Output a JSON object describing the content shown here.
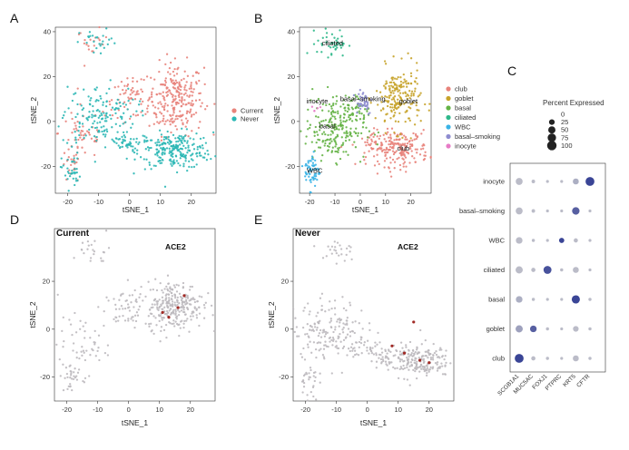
{
  "figure": {
    "panel_letters": [
      "A",
      "B",
      "C",
      "D",
      "E"
    ]
  },
  "chart_data": [
    {
      "panel": "A",
      "type": "scatter",
      "xlabel": "tSNE_1",
      "ylabel": "tSNE_2",
      "xticks": [
        -20,
        -10,
        0,
        10,
        20
      ],
      "yticks": [
        -20,
        0,
        20,
        40
      ],
      "xlim": [
        -24,
        28
      ],
      "ylim": [
        -32,
        42
      ],
      "legend": {
        "placement": "right",
        "entries": [
          {
            "name": "Current",
            "color": "#E8837B"
          },
          {
            "name": "Never",
            "color": "#2BB7B5"
          }
        ]
      },
      "series": [
        {
          "name": "Current",
          "color": "#E8837B",
          "clusters": [
            {
              "cx": 15,
              "cy": 10,
              "sx": 4.5,
              "sy": 8,
              "n": 260
            },
            {
              "cx": -12,
              "cy": 35,
              "sx": 2.5,
              "sy": 3,
              "n": 20
            },
            {
              "cx": 0,
              "cy": 10,
              "sx": 4,
              "sy": 4,
              "n": 60
            },
            {
              "cx": -15,
              "cy": -5,
              "sx": 4,
              "sy": 6,
              "n": 50
            },
            {
              "cx": -19,
              "cy": -20,
              "sx": 1.5,
              "sy": 4,
              "n": 25
            }
          ]
        },
        {
          "name": "Never",
          "color": "#2BB7B5",
          "clusters": [
            {
              "cx": 15,
              "cy": -13,
              "sx": 6,
              "sy": 4,
              "n": 240
            },
            {
              "cx": -10,
              "cy": 2,
              "sx": 6,
              "sy": 7,
              "n": 160
            },
            {
              "cx": -19,
              "cy": -22,
              "sx": 1.5,
              "sy": 4,
              "n": 35
            },
            {
              "cx": -10,
              "cy": 35,
              "sx": 3,
              "sy": 3,
              "n": 25
            },
            {
              "cx": 1,
              "cy": -10,
              "sx": 4,
              "sy": 2,
              "n": 40
            }
          ]
        }
      ]
    },
    {
      "panel": "B",
      "type": "scatter",
      "xlabel": "tSNE_1",
      "ylabel": "tSNE_2",
      "xticks": [
        -20,
        -10,
        0,
        10,
        20
      ],
      "yticks": [
        -20,
        0,
        20,
        40
      ],
      "xlim": [
        -24,
        28
      ],
      "ylim": [
        -32,
        42
      ],
      "legend": {
        "placement": "right",
        "entries": [
          {
            "name": "club",
            "color": "#E8837B"
          },
          {
            "name": "goblet",
            "color": "#C7A32A"
          },
          {
            "name": "basal",
            "color": "#64B345"
          },
          {
            "name": "ciliated",
            "color": "#2EB88A"
          },
          {
            "name": "WBC",
            "color": "#39B3E6"
          },
          {
            "name": "basal–smoking",
            "color": "#8E8CD0"
          },
          {
            "name": "inocyte",
            "color": "#E77BC6"
          }
        ]
      },
      "cluster_labels": [
        {
          "text": "ciliated",
          "x": -11,
          "y": 34
        },
        {
          "text": "inocyte",
          "x": -17,
          "y": 8
        },
        {
          "text": "basal–smoking",
          "x": 1,
          "y": 9
        },
        {
          "text": "goblet",
          "x": 19,
          "y": 8
        },
        {
          "text": "basal",
          "x": -13,
          "y": -3
        },
        {
          "text": "club",
          "x": 17,
          "y": -13
        },
        {
          "text": "WBC",
          "x": -18,
          "y": -23
        }
      ],
      "series": [
        {
          "name": "club",
          "color": "#E8837B",
          "clusters": [
            {
              "cx": 15,
              "cy": -12,
              "sx": 6,
              "sy": 4,
              "n": 200
            },
            {
              "cx": 6,
              "cy": -10,
              "sx": 3,
              "sy": 2,
              "n": 25
            }
          ]
        },
        {
          "name": "goblet",
          "color": "#C7A32A",
          "clusters": [
            {
              "cx": 15,
              "cy": 10,
              "sx": 4.5,
              "sy": 7,
              "n": 200
            }
          ]
        },
        {
          "name": "basal",
          "color": "#64B345",
          "clusters": [
            {
              "cx": -10,
              "cy": -3,
              "sx": 6,
              "sy": 7,
              "n": 230
            },
            {
              "cx": -3,
              "cy": 6,
              "sx": 3,
              "sy": 3,
              "n": 30
            }
          ]
        },
        {
          "name": "ciliated",
          "color": "#2EB88A",
          "clusters": [
            {
              "cx": -11,
              "cy": 35,
              "sx": 3,
              "sy": 3,
              "n": 45
            }
          ]
        },
        {
          "name": "WBC",
          "color": "#39B3E6",
          "clusters": [
            {
              "cx": -19,
              "cy": -22,
              "sx": 1.5,
              "sy": 4,
              "n": 60
            }
          ]
        },
        {
          "name": "basal–smoking",
          "color": "#8E8CD0",
          "clusters": [
            {
              "cx": 1,
              "cy": 9,
              "sx": 2,
              "sy": 3,
              "n": 40
            }
          ]
        },
        {
          "name": "inocyte",
          "color": "#E77BC6",
          "clusters": [
            {
              "cx": -17,
              "cy": 6,
              "sx": 1,
              "sy": 1,
              "n": 5
            }
          ]
        }
      ]
    },
    {
      "panel": "C",
      "type": "dot",
      "genes": [
        "SCGB1A1",
        "MUC5AC",
        "FOXJ1",
        "PTPRC",
        "KRT5",
        "CFTR"
      ],
      "cell_types": [
        "inocyte",
        "basal–smoking",
        "WBC",
        "ciliated",
        "basal",
        "goblet",
        "club"
      ],
      "size_legend": {
        "title": "Percent Expressed",
        "levels": [
          0,
          25,
          50,
          75,
          100
        ]
      },
      "values": [
        {
          "cell": "inocyte",
          "pct": [
            45,
            5,
            2,
            2,
            30,
            85
          ],
          "avg": [
            0.1,
            0.1,
            0.1,
            0.1,
            0.2,
            1.0
          ]
        },
        {
          "cell": "basal–smoking",
          "pct": [
            45,
            5,
            2,
            2,
            55,
            2
          ],
          "avg": [
            0.1,
            0.1,
            0.1,
            0.1,
            0.8,
            0.1
          ]
        },
        {
          "cell": "WBC",
          "pct": [
            40,
            3,
            2,
            20,
            10,
            2
          ],
          "avg": [
            0.1,
            0.1,
            0.1,
            1.0,
            0.1,
            0.1
          ]
        },
        {
          "cell": "ciliated",
          "pct": [
            50,
            10,
            65,
            3,
            30,
            2
          ],
          "avg": [
            0.1,
            0.1,
            0.9,
            0.1,
            0.1,
            0.1
          ]
        },
        {
          "cell": "basal",
          "pct": [
            40,
            3,
            2,
            2,
            70,
            3
          ],
          "avg": [
            0.2,
            0.1,
            0.1,
            0.1,
            1.0,
            0.1
          ]
        },
        {
          "cell": "goblet",
          "pct": [
            50,
            40,
            3,
            2,
            25,
            3
          ],
          "avg": [
            0.3,
            0.8,
            0.1,
            0.1,
            0.1,
            0.1
          ]
        },
        {
          "cell": "club",
          "pct": [
            85,
            10,
            3,
            2,
            30,
            3
          ],
          "avg": [
            1.0,
            0.1,
            0.1,
            0.1,
            0.1,
            0.1
          ]
        }
      ],
      "colors": {
        "low": "#C9C9CE",
        "high": "#3A4596"
      }
    },
    {
      "panel": "D",
      "type": "scatter",
      "title": "Current",
      "gene": "ACE2",
      "xlabel": "tSNE_1",
      "ylabel": "tSNE_2",
      "xticks": [
        -20,
        -10,
        0,
        10,
        20
      ],
      "yticks": [
        -20,
        0,
        20
      ],
      "xlim": [
        -24,
        28
      ],
      "ylim": [
        -30,
        42
      ],
      "colors": {
        "base": "#BDB9BE",
        "expressed": "#A12A25"
      },
      "series": [
        {
          "name": "cells",
          "color": "#BDB9BE",
          "clusters": [
            {
              "cx": 15,
              "cy": 10,
              "sx": 4.5,
              "sy": 5,
              "n": 260
            },
            {
              "cx": -12,
              "cy": 33,
              "sx": 3,
              "sy": 3,
              "n": 22
            },
            {
              "cx": 0,
              "cy": 8,
              "sx": 4,
              "sy": 4,
              "n": 60
            },
            {
              "cx": -15,
              "cy": -7,
              "sx": 4,
              "sy": 6,
              "n": 50
            },
            {
              "cx": -19,
              "cy": -20,
              "sx": 1.5,
              "sy": 4,
              "n": 30
            }
          ]
        },
        {
          "name": "ACE2",
          "color": "#A12A25",
          "points": [
            {
              "x": 13,
              "y": 5
            },
            {
              "x": 16,
              "y": 9
            },
            {
              "x": 18,
              "y": 14
            },
            {
              "x": 11,
              "y": 7
            }
          ]
        }
      ]
    },
    {
      "panel": "E",
      "type": "scatter",
      "title": "Never",
      "gene": "ACE2",
      "xlabel": "tSNE_1",
      "ylabel": "tSNE_2",
      "xticks": [
        -20,
        -10,
        0,
        10,
        20
      ],
      "yticks": [
        -20,
        0,
        20
      ],
      "xlim": [
        -24,
        28
      ],
      "ylim": [
        -30,
        42
      ],
      "colors": {
        "base": "#BDB9BE",
        "expressed": "#A12A25"
      },
      "series": [
        {
          "name": "cells",
          "color": "#BDB9BE",
          "clusters": [
            {
              "cx": 15,
              "cy": -13,
              "sx": 6,
              "sy": 3.5,
              "n": 230
            },
            {
              "cx": -12,
              "cy": 0,
              "sx": 6,
              "sy": 6,
              "n": 170
            },
            {
              "cx": -19,
              "cy": -22,
              "sx": 1.5,
              "sy": 4,
              "n": 30
            },
            {
              "cx": -10,
              "cy": 33,
              "sx": 3,
              "sy": 3,
              "n": 25
            },
            {
              "cx": 1,
              "cy": -9,
              "sx": 4,
              "sy": 2,
              "n": 40
            }
          ]
        },
        {
          "name": "ACE2",
          "color": "#A12A25",
          "points": [
            {
              "x": 15,
              "y": 3
            },
            {
              "x": 12,
              "y": -10
            },
            {
              "x": 17,
              "y": -13
            },
            {
              "x": 20,
              "y": -14
            },
            {
              "x": 8,
              "y": -7
            }
          ]
        }
      ]
    }
  ]
}
